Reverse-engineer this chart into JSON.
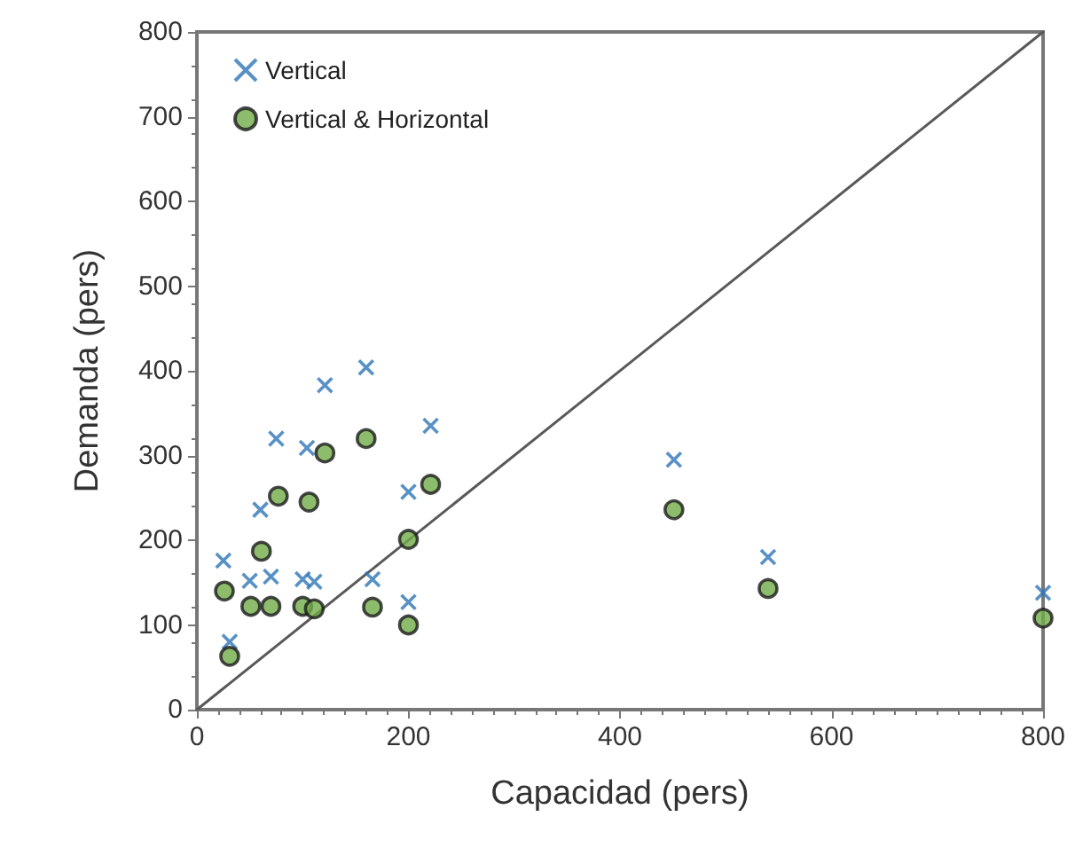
{
  "chart_data": {
    "type": "scatter",
    "xlabel": "Capacidad (pers)",
    "ylabel": "Demanda (pers)",
    "xlim": [
      0,
      800
    ],
    "xticks": [
      0,
      200,
      400,
      600,
      800
    ],
    "ylim": [
      0,
      800
    ],
    "yticks": [
      0,
      100,
      200,
      300,
      400,
      500,
      600,
      700,
      800
    ],
    "grid": false,
    "legend": "top left",
    "series": [
      {
        "name": "Vertical",
        "color": "#2e75b6",
        "marker": "cross",
        "x": [
          25,
          31,
          50,
          70,
          60,
          75,
          100,
          111,
          104,
          121,
          160,
          166,
          200,
          200,
          221,
          451,
          540,
          800
        ],
        "values": [
          176,
          80,
          152,
          157,
          236,
          320,
          154,
          151,
          309,
          383,
          404,
          154,
          257,
          127,
          335,
          295,
          180,
          138
        ]
      },
      {
        "name": "Vertical & Horizontal",
        "color": "#70ad47",
        "marker": "circle",
        "x": [
          26,
          31,
          51,
          70,
          61,
          77,
          100,
          111,
          106,
          121,
          160,
          166,
          200,
          200,
          221,
          451,
          540,
          800
        ],
        "values": [
          140,
          63,
          122,
          122,
          187,
          252,
          122,
          119,
          245,
          303,
          320,
          121,
          201,
          100,
          266,
          236,
          143,
          108
        ]
      },
      {
        "type": "line",
        "color": "#595959",
        "marker": "none",
        "x": [
          0,
          800
        ],
        "values": [
          0,
          800
        ]
      }
    ]
  }
}
